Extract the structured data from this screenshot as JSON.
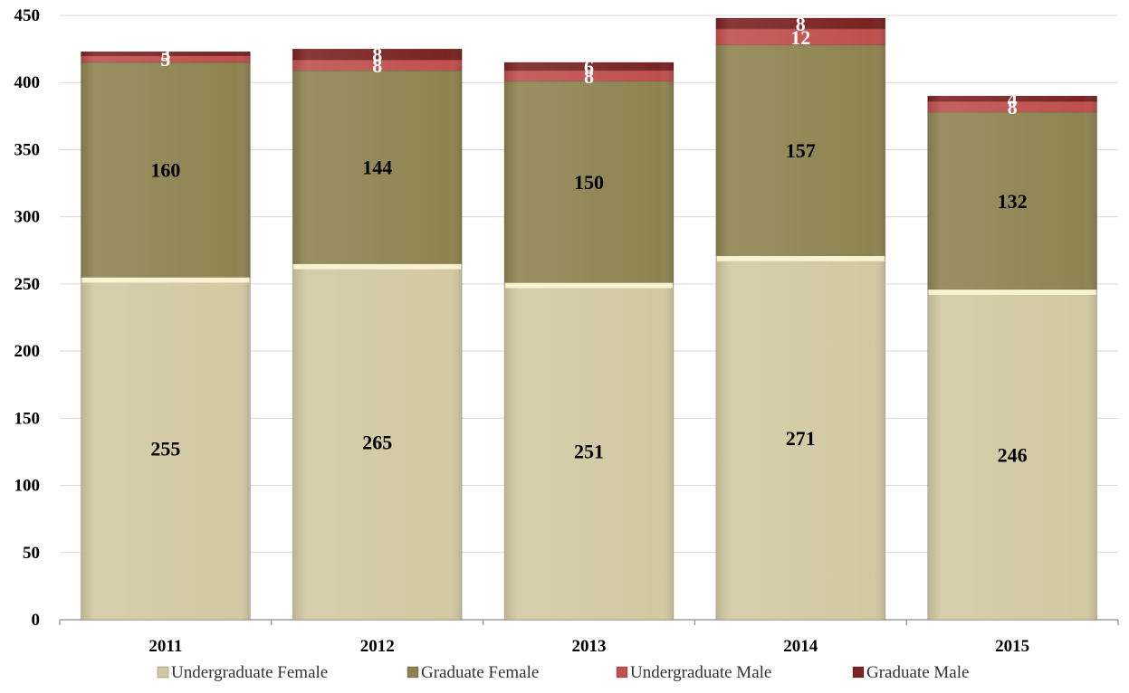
{
  "chart_data": {
    "type": "bar",
    "stacked": true,
    "title": "",
    "xlabel": "",
    "ylabel": "",
    "categories": [
      "2011",
      "2012",
      "2013",
      "2014",
      "2015"
    ],
    "ylim": [
      0,
      450
    ],
    "yticks": [
      0,
      50,
      100,
      150,
      200,
      250,
      300,
      350,
      400,
      450
    ],
    "grid": true,
    "legend_position": "bottom",
    "series": [
      {
        "name": "Undergraduate Female",
        "values": [
          255,
          265,
          251,
          271,
          246
        ],
        "color": "#d2c9a2",
        "label_color": "#000000"
      },
      {
        "name": "Graduate Female",
        "values": [
          160,
          144,
          150,
          157,
          132
        ],
        "color": "#8e8350",
        "label_color": "#000000"
      },
      {
        "name": "Undergraduate Male",
        "values": [
          5,
          8,
          8,
          12,
          8
        ],
        "color": "#c0504d",
        "label_color": "#ffffff"
      },
      {
        "name": "Graduate Male",
        "values": [
          3,
          8,
          6,
          8,
          4
        ],
        "color": "#7a2323",
        "label_color": "#ffffff"
      }
    ],
    "label_thresholds": {
      "hide_below": 0
    },
    "highlight_band_color": "#fdf7d6"
  }
}
